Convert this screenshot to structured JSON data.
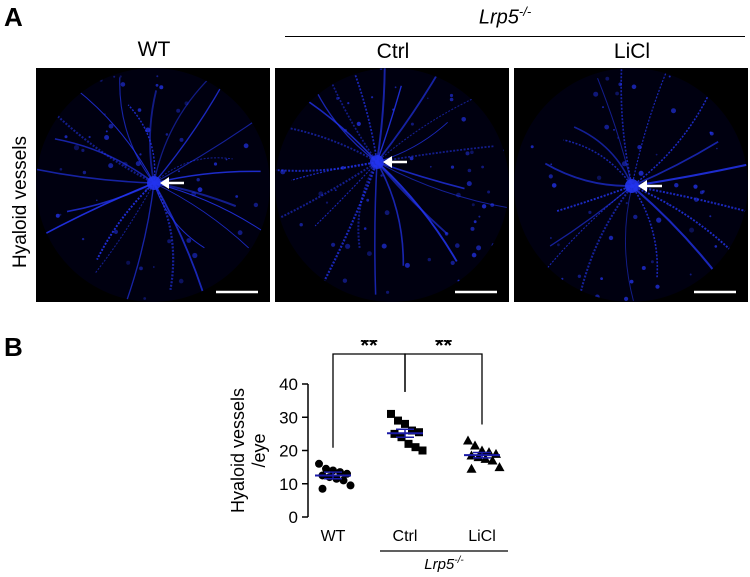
{
  "panel_a": {
    "letter": "A",
    "genotype_group": {
      "name": "Lrp5",
      "superscript": "-/-"
    },
    "columns": [
      {
        "label": "WT"
      },
      {
        "label": "Ctrl"
      },
      {
        "label": "LiCl"
      }
    ],
    "row_label": "Hyaloid vessels",
    "colors": {
      "vessel": "#2233ee",
      "background": "#000000",
      "arrow": "#ffffff",
      "scalebar": "#ffffff"
    }
  },
  "panel_b": {
    "letter": "B",
    "chart_data": {
      "type": "scatter",
      "ylabel_line1": "Hyaloid vessels",
      "ylabel_line2": "/eye",
      "ylim": [
        0,
        40
      ],
      "yticks": [
        0,
        10,
        20,
        30,
        40
      ],
      "categories": [
        "WT",
        "Ctrl",
        "LiCl"
      ],
      "group_label": {
        "name": "Lrp5",
        "superscript": "-/-"
      },
      "mean_color": "#1a1aa6",
      "series": [
        {
          "category": "WT",
          "marker": "circle",
          "mean": 12.5,
          "sem": 1.0,
          "values": [
            16,
            14.5,
            14,
            13.5,
            13,
            12.5,
            12,
            11.5,
            11,
            9.5,
            8.5
          ]
        },
        {
          "category": "Ctrl",
          "marker": "square",
          "mean": 25.2,
          "sem": 1.2,
          "values": [
            31,
            29,
            28,
            26,
            25.5,
            25,
            24,
            22,
            21,
            20
          ]
        },
        {
          "category": "LiCl",
          "marker": "triangle",
          "mean": 18.6,
          "sem": 0.8,
          "values": [
            23,
            21.5,
            20,
            19.5,
            19,
            18.5,
            18,
            17.5,
            17,
            15,
            14.5
          ]
        }
      ],
      "significance": [
        {
          "from": "WT",
          "to": "Ctrl",
          "label": "**"
        },
        {
          "from": "Ctrl",
          "to": "LiCl",
          "label": "**"
        }
      ]
    }
  }
}
